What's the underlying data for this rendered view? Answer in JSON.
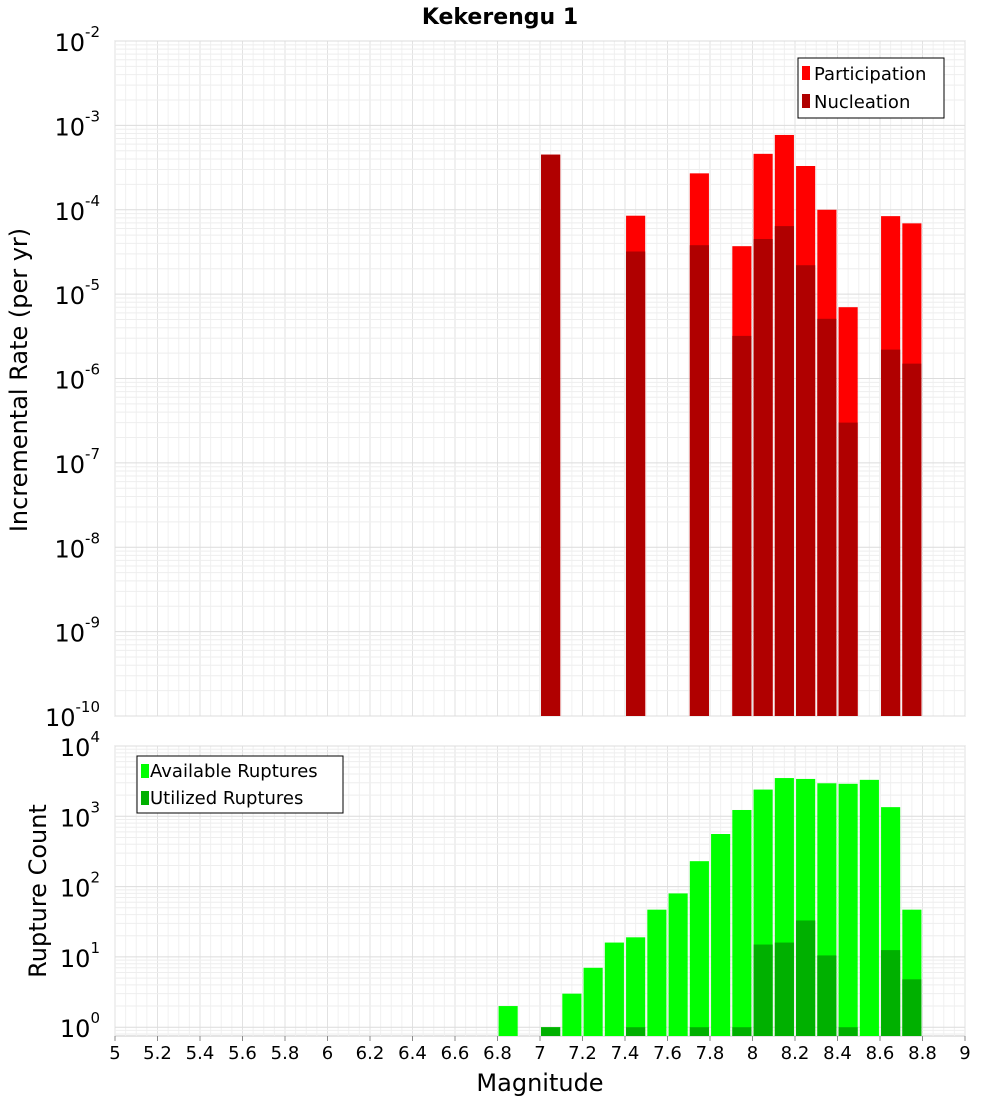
{
  "chart_data": [
    {
      "type": "bar",
      "title": "Kekerengu 1",
      "ylabel": "Incremental Rate (per yr)",
      "xlim": [
        5,
        9
      ],
      "ylim": [
        1e-10,
        0.01
      ],
      "yscale": "log",
      "grid": true,
      "legend_position": "top-right",
      "bar_width": 0.09,
      "x": [
        7.05,
        7.45,
        7.75,
        7.95,
        8.05,
        8.15,
        8.25,
        8.35,
        8.45,
        8.65,
        8.75
      ],
      "series": [
        {
          "name": "Participation",
          "color": "#ff0000",
          "values": [
            0.00045,
            8.5e-05,
            0.00027,
            3.7e-05,
            0.00046,
            0.00077,
            0.00033,
            0.0001,
            7e-06,
            8.4e-05,
            6.9e-05
          ]
        },
        {
          "name": "Nucleation",
          "color": "#b00000",
          "values": [
            0.00045,
            3.2e-05,
            3.8e-05,
            3.2e-06,
            4.5e-05,
            6.4e-05,
            2.2e-05,
            5.1e-06,
            3e-07,
            2.2e-06,
            1.5e-06
          ]
        }
      ]
    },
    {
      "type": "bar",
      "ylabel": "Rupture Count",
      "xlabel": "Magnitude",
      "xlim": [
        5,
        9
      ],
      "ylim": [
        0.75,
        10000
      ],
      "yscale": "log",
      "grid": true,
      "legend_position": "top-left",
      "bar_width": 0.09,
      "x": [
        6.85,
        7.05,
        7.15,
        7.25,
        7.35,
        7.45,
        7.55,
        7.65,
        7.75,
        7.85,
        7.95,
        8.05,
        8.15,
        8.25,
        8.35,
        8.45,
        8.55,
        8.65,
        8.75
      ],
      "series": [
        {
          "name": "Available Ruptures",
          "color": "#00ff00",
          "values": [
            2,
            1,
            3,
            7,
            16,
            19,
            47,
            80,
            230,
            560,
            1230,
            2400,
            3500,
            3400,
            2950,
            2900,
            3300,
            1350,
            47
          ]
        },
        {
          "name": "Utilized Ruptures",
          "color": "#00b000",
          "values": [
            null,
            1,
            null,
            null,
            null,
            1,
            null,
            null,
            1,
            null,
            1,
            15,
            16,
            33,
            10.5,
            1,
            null,
            12.5,
            4.8
          ]
        }
      ]
    }
  ],
  "x_ticks": [
    "5",
    "5.2",
    "5.4",
    "5.6",
    "5.8",
    "6",
    "6.2",
    "6.4",
    "6.6",
    "6.8",
    "7",
    "7.2",
    "7.4",
    "7.6",
    "7.8",
    "8",
    "8.2",
    "8.4",
    "8.6",
    "8.8",
    "9"
  ],
  "top_y_ticks": [
    {
      "base": "10",
      "exp": "-10",
      "value": 1e-10
    },
    {
      "base": "10",
      "exp": "-9",
      "value": 1e-09
    },
    {
      "base": "10",
      "exp": "-8",
      "value": 1e-08
    },
    {
      "base": "10",
      "exp": "-7",
      "value": 1e-07
    },
    {
      "base": "10",
      "exp": "-6",
      "value": 1e-06
    },
    {
      "base": "10",
      "exp": "-5",
      "value": 1e-05
    },
    {
      "base": "10",
      "exp": "-4",
      "value": 0.0001
    },
    {
      "base": "10",
      "exp": "-3",
      "value": 0.001
    },
    {
      "base": "10",
      "exp": "-2",
      "value": 0.01
    }
  ],
  "bottom_y_ticks": [
    {
      "base": "10",
      "exp": "0",
      "value": 1
    },
    {
      "base": "10",
      "exp": "1",
      "value": 10
    },
    {
      "base": "10",
      "exp": "2",
      "value": 100
    },
    {
      "base": "10",
      "exp": "3",
      "value": 1000
    },
    {
      "base": "10",
      "exp": "4",
      "value": 10000
    }
  ]
}
